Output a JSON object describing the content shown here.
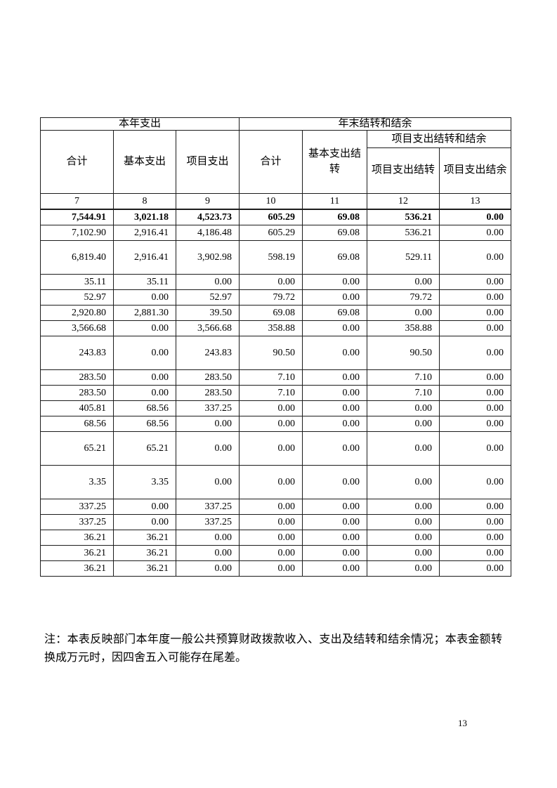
{
  "page": {
    "background_color": "#ffffff",
    "text_color": "#000000",
    "border_color": "#1c1c1c",
    "number": "13"
  },
  "table": {
    "group_headers": [
      {
        "label": "本年支出"
      },
      {
        "label": "年末结转和结余"
      }
    ],
    "subgroup_header": "项目支出结转和结余",
    "columns": [
      {
        "label": "合计",
        "index": "7"
      },
      {
        "label": "基本支出",
        "index": "8"
      },
      {
        "label": "项目支出",
        "index": "9"
      },
      {
        "label": "合计",
        "index": "10"
      },
      {
        "label": "基本支出结转",
        "index": "11"
      },
      {
        "label": "项目支出结转",
        "index": "12"
      },
      {
        "label": "项目支出结余",
        "index": "13"
      }
    ],
    "rows": [
      {
        "values": [
          "7,544.91",
          "3,021.18",
          "4,523.73",
          "605.29",
          "69.08",
          "536.21",
          "0.00"
        ],
        "bold": true,
        "tall": false
      },
      {
        "values": [
          "7,102.90",
          "2,916.41",
          "4,186.48",
          "605.29",
          "69.08",
          "536.21",
          "0.00"
        ],
        "bold": false,
        "tall": false
      },
      {
        "values": [
          "6,819.40",
          "2,916.41",
          "3,902.98",
          "598.19",
          "69.08",
          "529.11",
          "0.00"
        ],
        "bold": false,
        "tall": true
      },
      {
        "values": [
          "35.11",
          "35.11",
          "0.00",
          "0.00",
          "0.00",
          "0.00",
          "0.00"
        ],
        "bold": false,
        "tall": false
      },
      {
        "values": [
          "52.97",
          "0.00",
          "52.97",
          "79.72",
          "0.00",
          "79.72",
          "0.00"
        ],
        "bold": false,
        "tall": false
      },
      {
        "values": [
          "2,920.80",
          "2,881.30",
          "39.50",
          "69.08",
          "69.08",
          "0.00",
          "0.00"
        ],
        "bold": false,
        "tall": false
      },
      {
        "values": [
          "3,566.68",
          "0.00",
          "3,566.68",
          "358.88",
          "0.00",
          "358.88",
          "0.00"
        ],
        "bold": false,
        "tall": false
      },
      {
        "values": [
          "243.83",
          "0.00",
          "243.83",
          "90.50",
          "0.00",
          "90.50",
          "0.00"
        ],
        "bold": false,
        "tall": true
      },
      {
        "values": [
          "283.50",
          "0.00",
          "283.50",
          "7.10",
          "0.00",
          "7.10",
          "0.00"
        ],
        "bold": false,
        "tall": false
      },
      {
        "values": [
          "283.50",
          "0.00",
          "283.50",
          "7.10",
          "0.00",
          "7.10",
          "0.00"
        ],
        "bold": false,
        "tall": false
      },
      {
        "values": [
          "405.81",
          "68.56",
          "337.25",
          "0.00",
          "0.00",
          "0.00",
          "0.00"
        ],
        "bold": false,
        "tall": false
      },
      {
        "values": [
          "68.56",
          "68.56",
          "0.00",
          "0.00",
          "0.00",
          "0.00",
          "0.00"
        ],
        "bold": false,
        "tall": false
      },
      {
        "values": [
          "65.21",
          "65.21",
          "0.00",
          "0.00",
          "0.00",
          "0.00",
          "0.00"
        ],
        "bold": false,
        "tall": true
      },
      {
        "values": [
          "3.35",
          "3.35",
          "0.00",
          "0.00",
          "0.00",
          "0.00",
          "0.00"
        ],
        "bold": false,
        "tall": true
      },
      {
        "values": [
          "337.25",
          "0.00",
          "337.25",
          "0.00",
          "0.00",
          "0.00",
          "0.00"
        ],
        "bold": false,
        "tall": false
      },
      {
        "values": [
          "337.25",
          "0.00",
          "337.25",
          "0.00",
          "0.00",
          "0.00",
          "0.00"
        ],
        "bold": false,
        "tall": false
      },
      {
        "values": [
          "36.21",
          "36.21",
          "0.00",
          "0.00",
          "0.00",
          "0.00",
          "0.00"
        ],
        "bold": false,
        "tall": false
      },
      {
        "values": [
          "36.21",
          "36.21",
          "0.00",
          "0.00",
          "0.00",
          "0.00",
          "0.00"
        ],
        "bold": false,
        "tall": false
      },
      {
        "values": [
          "36.21",
          "36.21",
          "0.00",
          "0.00",
          "0.00",
          "0.00",
          "0.00"
        ],
        "bold": false,
        "tall": false
      }
    ]
  },
  "note": "注：本表反映部门本年度一般公共预算财政拨款收入、支出及结转和结余情况；本表金额转换成万元时，因四舍五入可能存在尾差。"
}
